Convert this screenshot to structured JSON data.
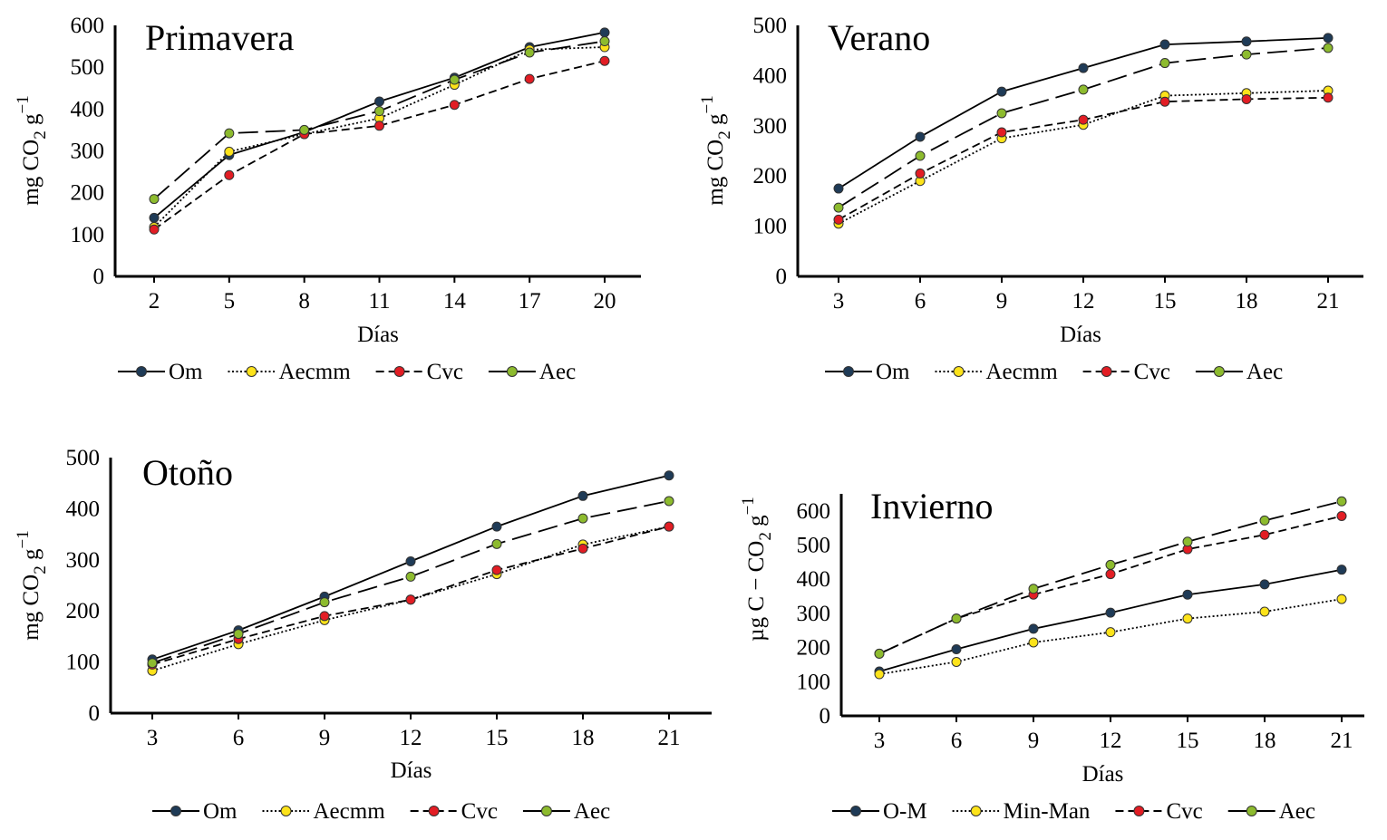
{
  "figure": {
    "legend_colors": {
      "Om": "#1f3b57",
      "Aecmm": "#fde31a",
      "Cvc": "#e21d24",
      "Aec": "#8dbb2e"
    }
  },
  "chart_data": [
    {
      "type": "line",
      "title": "Primavera",
      "xlabel": "Días",
      "ylabel_main": "mg CO",
      "ylabel_sub": "2",
      "ylabel_unit": "g",
      "ylabel_sup": "−1",
      "categories": [
        "2",
        "5",
        "8",
        "11",
        "14",
        "17",
        "20"
      ],
      "yticks": [
        "0",
        "100",
        "200",
        "300",
        "400",
        "500",
        "600"
      ],
      "ylim": [
        0,
        600
      ],
      "legend_position": "bottom",
      "series": [
        {
          "name": "Om",
          "style": "solid",
          "color": "#1f3b57",
          "values": [
            140,
            290,
            345,
            418,
            475,
            548,
            583
          ]
        },
        {
          "name": "Aecmm",
          "style": "dotted",
          "color": "#fde31a",
          "values": [
            118,
            298,
            340,
            378,
            458,
            542,
            548
          ]
        },
        {
          "name": "Cvc",
          "style": "shortdash",
          "color": "#e21d24",
          "values": [
            112,
            242,
            340,
            360,
            410,
            472,
            515
          ]
        },
        {
          "name": "Aec",
          "style": "longdash",
          "color": "#8dbb2e",
          "values": [
            185,
            342,
            350,
            395,
            470,
            535,
            562
          ]
        }
      ]
    },
    {
      "type": "line",
      "title": "Verano",
      "xlabel": "Días",
      "ylabel_main": "mg CO",
      "ylabel_sub": "2",
      "ylabel_unit": "g",
      "ylabel_sup": "−1",
      "categories": [
        "3",
        "6",
        "9",
        "12",
        "15",
        "18",
        "21"
      ],
      "yticks": [
        "0",
        "100",
        "200",
        "300",
        "400",
        "500"
      ],
      "ylim": [
        0,
        500
      ],
      "legend_position": "bottom",
      "series": [
        {
          "name": "Om",
          "style": "solid",
          "color": "#1f3b57",
          "values": [
            175,
            278,
            368,
            415,
            462,
            468,
            475
          ]
        },
        {
          "name": "Aecmm",
          "style": "dotted",
          "color": "#fde31a",
          "values": [
            105,
            190,
            275,
            302,
            360,
            365,
            370
          ]
        },
        {
          "name": "Cvc",
          "style": "shortdash",
          "color": "#e21d24",
          "values": [
            113,
            205,
            287,
            312,
            348,
            353,
            356
          ]
        },
        {
          "name": "Aec",
          "style": "longdash",
          "color": "#8dbb2e",
          "values": [
            137,
            240,
            325,
            372,
            425,
            442,
            455
          ]
        }
      ]
    },
    {
      "type": "line",
      "title": "Otoño",
      "xlabel": "Días",
      "ylabel_main": "mg CO",
      "ylabel_sub": "2",
      "ylabel_unit": "g",
      "ylabel_sup": "−1",
      "categories": [
        "3",
        "6",
        "9",
        "12",
        "15",
        "18",
        "21"
      ],
      "yticks": [
        "0",
        "100",
        "200",
        "300",
        "400",
        "500"
      ],
      "ylim": [
        0,
        500
      ],
      "legend_position": "bottom",
      "series": [
        {
          "name": "Om",
          "style": "solid",
          "color": "#1f3b57",
          "values": [
            105,
            162,
            228,
            297,
            365,
            425,
            465
          ]
        },
        {
          "name": "Aecmm",
          "style": "dotted",
          "color": "#fde31a",
          "values": [
            83,
            135,
            182,
            222,
            272,
            330,
            365
          ]
        },
        {
          "name": "Cvc",
          "style": "shortdash",
          "color": "#e21d24",
          "values": [
            95,
            145,
            190,
            222,
            280,
            322,
            365
          ]
        },
        {
          "name": "Aec",
          "style": "longdash",
          "color": "#8dbb2e",
          "values": [
            98,
            155,
            217,
            267,
            331,
            381,
            415
          ]
        }
      ]
    },
    {
      "type": "line",
      "title": "Invierno",
      "xlabel": "Días",
      "ylabel_main": "µg C − CO",
      "ylabel_sub": "2",
      "ylabel_unit": "g",
      "ylabel_sup": "−1",
      "categories": [
        "3",
        "6",
        "9",
        "12",
        "15",
        "18",
        "21"
      ],
      "yticks": [
        "0",
        "100",
        "200",
        "300",
        "400",
        "500",
        "600"
      ],
      "ylim": [
        0,
        650
      ],
      "legend_position": "bottom",
      "series": [
        {
          "name": "O-M",
          "style": "solid",
          "color": "#1f3b57",
          "values": [
            130,
            195,
            255,
            302,
            355,
            385,
            428
          ]
        },
        {
          "name": "Min-Man",
          "style": "dotted",
          "color": "#fde31a",
          "values": [
            122,
            158,
            215,
            245,
            285,
            305,
            342
          ]
        },
        {
          "name": "Cvc",
          "style": "shortdash",
          "color": "#e21d24",
          "values": [
            182,
            285,
            355,
            415,
            488,
            530,
            585
          ]
        },
        {
          "name": "Aec",
          "style": "longdash",
          "color": "#8dbb2e",
          "values": [
            182,
            285,
            372,
            442,
            510,
            572,
            628
          ]
        }
      ]
    }
  ]
}
